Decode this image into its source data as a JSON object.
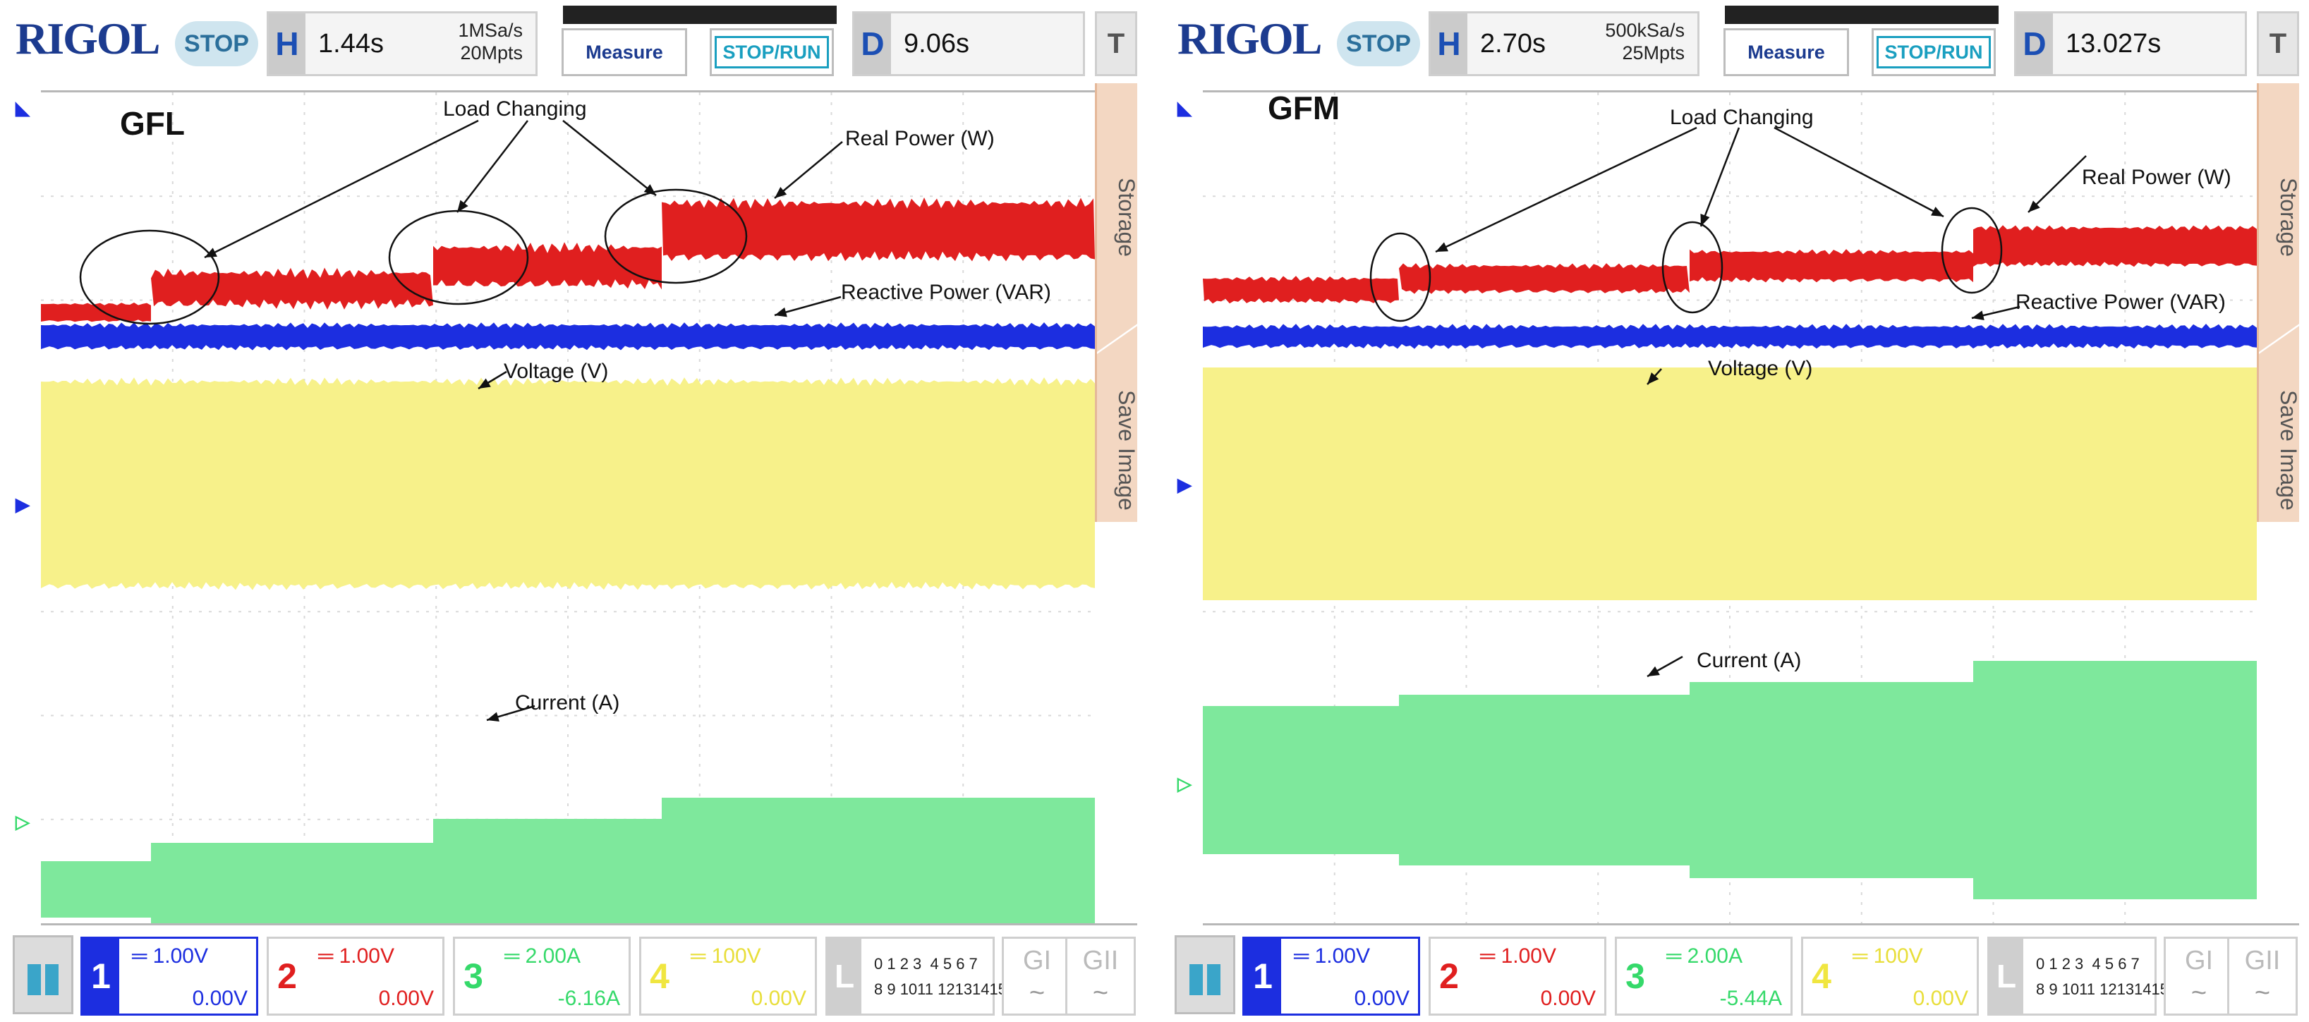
{
  "panels": [
    {
      "id": "left",
      "logo": "RIGOL",
      "status": "STOP",
      "horizontal": {
        "letter": "H",
        "value": "1.44s",
        "sample_rate": "1MSa/s",
        "memory_depth": "20Mpts"
      },
      "buttons": {
        "measure": "Measure",
        "stop_run": "STOP/RUN"
      },
      "delay": {
        "letter": "D",
        "value": "9.06s"
      },
      "trigger_key": "T",
      "side_tabs": [
        "Storage",
        "Save Image"
      ],
      "mode_title": "GFL",
      "annotations": {
        "load_changing": "Load Changing",
        "real_power": "Real Power (W)",
        "reactive_power": "Reactive Power (VAR)",
        "voltage": "Voltage (V)",
        "current": "Current (A)"
      },
      "channels": [
        {
          "num": "1",
          "scale": "1.00V",
          "offset": "0.00V"
        },
        {
          "num": "2",
          "scale": "1.00V",
          "offset": "0.00V"
        },
        {
          "num": "3",
          "scale": "2.00A",
          "offset": "-6.16A"
        },
        {
          "num": "4",
          "scale": "100V",
          "offset": "0.00V"
        }
      ],
      "la": {
        "letter": "L",
        "row1": "0 1 2 3  4 5 6 7",
        "row2": "8 9 1011 12131415"
      },
      "group_keys": [
        {
          "label": "GI",
          "wave": "~"
        },
        {
          "label": "GII",
          "wave": "~"
        }
      ]
    },
    {
      "id": "right",
      "logo": "RIGOL",
      "status": "STOP",
      "horizontal": {
        "letter": "H",
        "value": "2.70s",
        "sample_rate": "500kSa/s",
        "memory_depth": "25Mpts"
      },
      "buttons": {
        "measure": "Measure",
        "stop_run": "STOP/RUN"
      },
      "delay": {
        "letter": "D",
        "value": "13.027s"
      },
      "trigger_key": "T",
      "side_tabs": [
        "Storage",
        "Save Image"
      ],
      "mode_title": "GFM",
      "annotations": {
        "load_changing": "Load Changing",
        "real_power": "Real Power (W)",
        "reactive_power": "Reactive Power (VAR)",
        "voltage": "Voltage (V)",
        "current": "Current (A)"
      },
      "channels": [
        {
          "num": "1",
          "scale": "1.00V",
          "offset": "0.00V"
        },
        {
          "num": "2",
          "scale": "1.00V",
          "offset": "0.00V"
        },
        {
          "num": "3",
          "scale": "2.00A",
          "offset": "-5.44A"
        },
        {
          "num": "4",
          "scale": "100V",
          "offset": "0.00V"
        }
      ],
      "la": {
        "letter": "L",
        "row1": "0 1 2 3  4 5 6 7",
        "row2": "8 9 1011 12131415"
      },
      "group_keys": [
        {
          "label": "GI",
          "wave": "~"
        },
        {
          "label": "GII",
          "wave": "~"
        }
      ]
    }
  ],
  "colors": {
    "ch1": "#1c2ee0",
    "ch2": "#e01f1f",
    "ch3": "#35d96a",
    "ch4": "#f5f06a",
    "brand": "#1c3b8f"
  },
  "icons": [
    "menu-grid-icon",
    "trigger-marker-icon",
    "channel-marker-icon"
  ]
}
